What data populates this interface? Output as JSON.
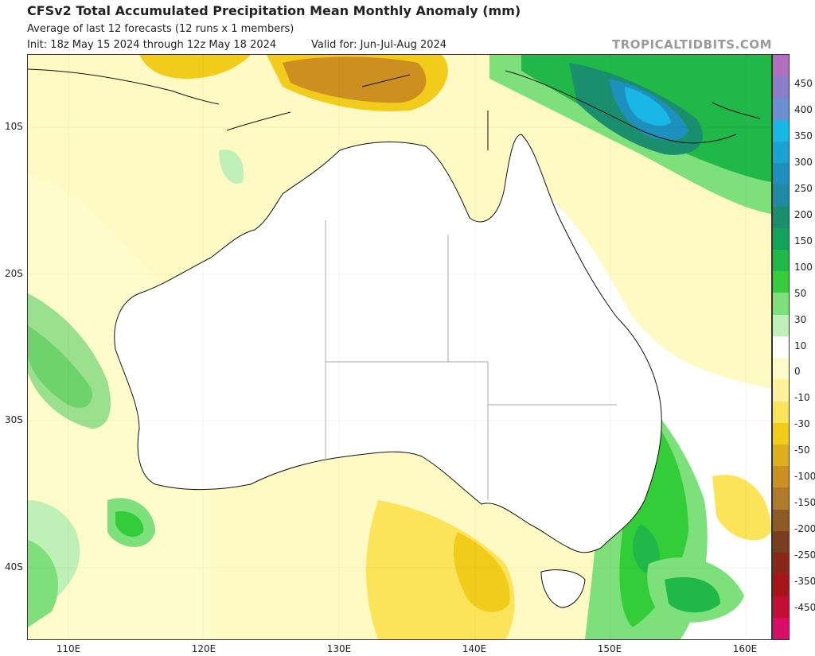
{
  "header": {
    "title": "CFSv2 Total Accumulated Precipitation Mean Monthly Anomaly (mm)",
    "subtitle": "Average of last 12 forecasts (12 runs x 1 members)",
    "init": "Init: 18z May 15 2024 through 12z May 18 2024",
    "valid": "Valid for: Jun-Jul-Aug 2024",
    "credit": "TROPICALTIDBITS.COM"
  },
  "map": {
    "region": "Australia",
    "lat_labels": [
      "10S",
      "20S",
      "30S",
      "40S"
    ],
    "lon_labels": [
      "110E",
      "120E",
      "130E",
      "140E",
      "150E",
      "160E"
    ]
  },
  "colorbar": {
    "unit": "mm",
    "labels": [
      "450",
      "400",
      "350",
      "300",
      "250",
      "200",
      "150",
      "100",
      "50",
      "30",
      "10",
      "0",
      "-10",
      "-30",
      "-50",
      "-100",
      "-150",
      "-200",
      "-250",
      "-350",
      "-450"
    ],
    "colors": [
      "#b36fbf",
      "#8b7ec9",
      "#6b8fd1",
      "#18b7e5",
      "#19a3d3",
      "#1d90bd",
      "#1f8aa4",
      "#1a8f6d",
      "#0fa35c",
      "#21b84a",
      "#34cd3a",
      "#7ee07a",
      "#bff0b7",
      "#ffffff",
      "#fffccc",
      "#fff29a",
      "#fbe45a",
      "#f2cc1a",
      "#e0ad1b",
      "#cc8f20",
      "#b07a2a",
      "#8e5a26",
      "#7a3e1e",
      "#8b2618",
      "#a8141a",
      "#c20f35",
      "#d60e66"
    ]
  }
}
